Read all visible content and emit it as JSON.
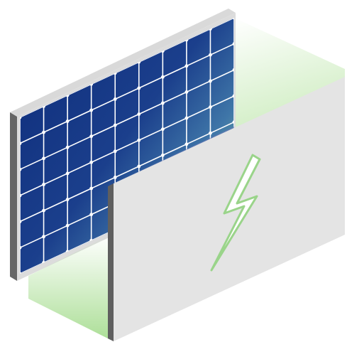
{
  "illustration": {
    "subject": "solar-panel-energy-storage",
    "icons": [
      "solar-panel-icon",
      "lightning-bolt-icon"
    ],
    "colors": {
      "background": "#ffffff",
      "panel_cell_dark": "#13307a",
      "panel_cell_mid": "#2b5aa8",
      "panel_cell_light": "#5e80c4",
      "panel_gridline": "#ffffff",
      "panel_frame": "#d8d8d8",
      "panel_frame_side": "#666666",
      "glow_green": "#a8dd92",
      "box_face": "#e6e6e6",
      "box_edge": "#5f5f5f",
      "bolt_fill": "#ffffff",
      "bolt_stroke": "#9ad48a",
      "overlay_tint": "#6a74b8"
    }
  }
}
